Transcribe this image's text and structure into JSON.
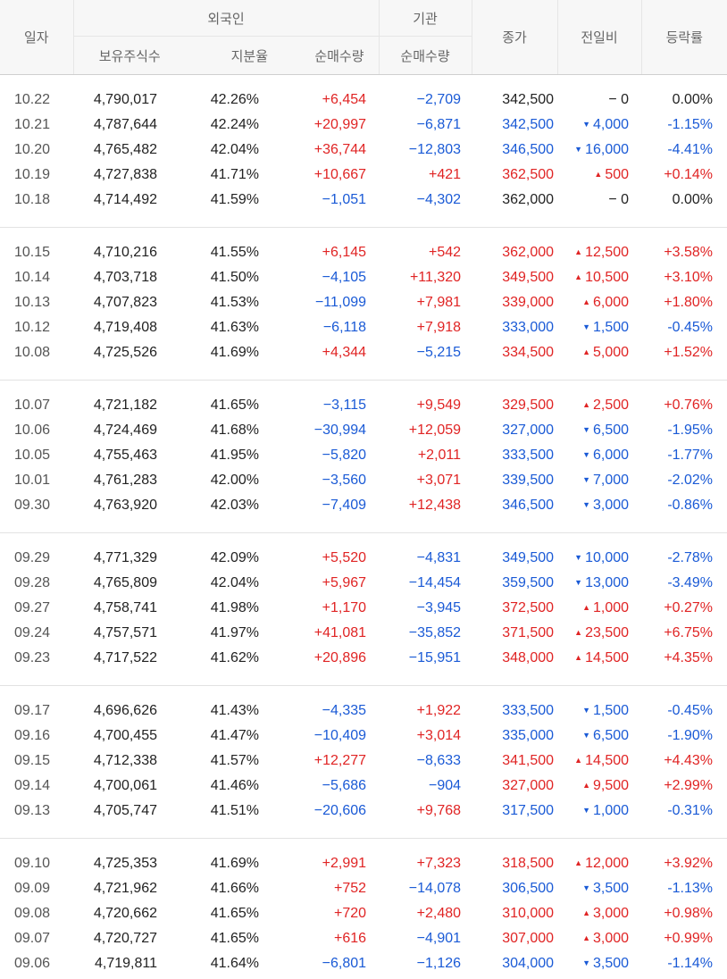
{
  "colors": {
    "up": "#e02424",
    "down": "#1a5ad6",
    "header_bg": "#f7f7f7"
  },
  "header": {
    "date": "일자",
    "foreign": "외국인",
    "institution": "기관",
    "close": "종가",
    "change": "전일비",
    "rate": "등락률",
    "holdings": "보유주식수",
    "ratio": "지분율",
    "foreign_net": "순매수량",
    "inst_net": "순매수량"
  },
  "groups": [
    [
      {
        "date": "10.22",
        "holdings": "4,790,017",
        "ratio": "42.26%",
        "foreign_net": "+6,454",
        "inst_net": "−2,709",
        "close": "342,500",
        "dir": "flat",
        "change": "− 0",
        "rate": "0.00%"
      },
      {
        "date": "10.21",
        "holdings": "4,787,644",
        "ratio": "42.24%",
        "foreign_net": "+20,997",
        "inst_net": "−6,871",
        "close": "342,500",
        "dir": "down",
        "change": "4,000",
        "rate": "-1.15%"
      },
      {
        "date": "10.20",
        "holdings": "4,765,482",
        "ratio": "42.04%",
        "foreign_net": "+36,744",
        "inst_net": "−12,803",
        "close": "346,500",
        "dir": "down",
        "change": "16,000",
        "rate": "-4.41%"
      },
      {
        "date": "10.19",
        "holdings": "4,727,838",
        "ratio": "41.71%",
        "foreign_net": "+10,667",
        "inst_net": "+421",
        "close": "362,500",
        "dir": "up",
        "change": "500",
        "rate": "+0.14%"
      },
      {
        "date": "10.18",
        "holdings": "4,714,492",
        "ratio": "41.59%",
        "foreign_net": "−1,051",
        "inst_net": "−4,302",
        "close": "362,000",
        "dir": "flat",
        "change": "− 0",
        "rate": "0.00%"
      }
    ],
    [
      {
        "date": "10.15",
        "holdings": "4,710,216",
        "ratio": "41.55%",
        "foreign_net": "+6,145",
        "inst_net": "+542",
        "close": "362,000",
        "dir": "up",
        "change": "12,500",
        "rate": "+3.58%"
      },
      {
        "date": "10.14",
        "holdings": "4,703,718",
        "ratio": "41.50%",
        "foreign_net": "−4,105",
        "inst_net": "+11,320",
        "close": "349,500",
        "dir": "up",
        "change": "10,500",
        "rate": "+3.10%"
      },
      {
        "date": "10.13",
        "holdings": "4,707,823",
        "ratio": "41.53%",
        "foreign_net": "−11,099",
        "inst_net": "+7,981",
        "close": "339,000",
        "dir": "up",
        "change": "6,000",
        "rate": "+1.80%"
      },
      {
        "date": "10.12",
        "holdings": "4,719,408",
        "ratio": "41.63%",
        "foreign_net": "−6,118",
        "inst_net": "+7,918",
        "close": "333,000",
        "dir": "down",
        "change": "1,500",
        "rate": "-0.45%"
      },
      {
        "date": "10.08",
        "holdings": "4,725,526",
        "ratio": "41.69%",
        "foreign_net": "+4,344",
        "inst_net": "−5,215",
        "close": "334,500",
        "dir": "up",
        "change": "5,000",
        "rate": "+1.52%"
      }
    ],
    [
      {
        "date": "10.07",
        "holdings": "4,721,182",
        "ratio": "41.65%",
        "foreign_net": "−3,115",
        "inst_net": "+9,549",
        "close": "329,500",
        "dir": "up",
        "change": "2,500",
        "rate": "+0.76%"
      },
      {
        "date": "10.06",
        "holdings": "4,724,469",
        "ratio": "41.68%",
        "foreign_net": "−30,994",
        "inst_net": "+12,059",
        "close": "327,000",
        "dir": "down",
        "change": "6,500",
        "rate": "-1.95%"
      },
      {
        "date": "10.05",
        "holdings": "4,755,463",
        "ratio": "41.95%",
        "foreign_net": "−5,820",
        "inst_net": "+2,011",
        "close": "333,500",
        "dir": "down",
        "change": "6,000",
        "rate": "-1.77%"
      },
      {
        "date": "10.01",
        "holdings": "4,761,283",
        "ratio": "42.00%",
        "foreign_net": "−3,560",
        "inst_net": "+3,071",
        "close": "339,500",
        "dir": "down",
        "change": "7,000",
        "rate": "-2.02%"
      },
      {
        "date": "09.30",
        "holdings": "4,763,920",
        "ratio": "42.03%",
        "foreign_net": "−7,409",
        "inst_net": "+12,438",
        "close": "346,500",
        "dir": "down",
        "change": "3,000",
        "rate": "-0.86%"
      }
    ],
    [
      {
        "date": "09.29",
        "holdings": "4,771,329",
        "ratio": "42.09%",
        "foreign_net": "+5,520",
        "inst_net": "−4,831",
        "close": "349,500",
        "dir": "down",
        "change": "10,000",
        "rate": "-2.78%"
      },
      {
        "date": "09.28",
        "holdings": "4,765,809",
        "ratio": "42.04%",
        "foreign_net": "+5,967",
        "inst_net": "−14,454",
        "close": "359,500",
        "dir": "down",
        "change": "13,000",
        "rate": "-3.49%"
      },
      {
        "date": "09.27",
        "holdings": "4,758,741",
        "ratio": "41.98%",
        "foreign_net": "+1,170",
        "inst_net": "−3,945",
        "close": "372,500",
        "dir": "up",
        "change": "1,000",
        "rate": "+0.27%"
      },
      {
        "date": "09.24",
        "holdings": "4,757,571",
        "ratio": "41.97%",
        "foreign_net": "+41,081",
        "inst_net": "−35,852",
        "close": "371,500",
        "dir": "up",
        "change": "23,500",
        "rate": "+6.75%"
      },
      {
        "date": "09.23",
        "holdings": "4,717,522",
        "ratio": "41.62%",
        "foreign_net": "+20,896",
        "inst_net": "−15,951",
        "close": "348,000",
        "dir": "up",
        "change": "14,500",
        "rate": "+4.35%"
      }
    ],
    [
      {
        "date": "09.17",
        "holdings": "4,696,626",
        "ratio": "41.43%",
        "foreign_net": "−4,335",
        "inst_net": "+1,922",
        "close": "333,500",
        "dir": "down",
        "change": "1,500",
        "rate": "-0.45%"
      },
      {
        "date": "09.16",
        "holdings": "4,700,455",
        "ratio": "41.47%",
        "foreign_net": "−10,409",
        "inst_net": "+3,014",
        "close": "335,000",
        "dir": "down",
        "change": "6,500",
        "rate": "-1.90%"
      },
      {
        "date": "09.15",
        "holdings": "4,712,338",
        "ratio": "41.57%",
        "foreign_net": "+12,277",
        "inst_net": "−8,633",
        "close": "341,500",
        "dir": "up",
        "change": "14,500",
        "rate": "+4.43%"
      },
      {
        "date": "09.14",
        "holdings": "4,700,061",
        "ratio": "41.46%",
        "foreign_net": "−5,686",
        "inst_net": "−904",
        "close": "327,000",
        "dir": "up",
        "change": "9,500",
        "rate": "+2.99%"
      },
      {
        "date": "09.13",
        "holdings": "4,705,747",
        "ratio": "41.51%",
        "foreign_net": "−20,606",
        "inst_net": "+9,768",
        "close": "317,500",
        "dir": "down",
        "change": "1,000",
        "rate": "-0.31%"
      }
    ],
    [
      {
        "date": "09.10",
        "holdings": "4,725,353",
        "ratio": "41.69%",
        "foreign_net": "+2,991",
        "inst_net": "+7,323",
        "close": "318,500",
        "dir": "up",
        "change": "12,000",
        "rate": "+3.92%"
      },
      {
        "date": "09.09",
        "holdings": "4,721,962",
        "ratio": "41.66%",
        "foreign_net": "+752",
        "inst_net": "−14,078",
        "close": "306,500",
        "dir": "down",
        "change": "3,500",
        "rate": "-1.13%"
      },
      {
        "date": "09.08",
        "holdings": "4,720,662",
        "ratio": "41.65%",
        "foreign_net": "+720",
        "inst_net": "+2,480",
        "close": "310,000",
        "dir": "up",
        "change": "3,000",
        "rate": "+0.98%"
      },
      {
        "date": "09.07",
        "holdings": "4,720,727",
        "ratio": "41.65%",
        "foreign_net": "+616",
        "inst_net": "−4,901",
        "close": "307,000",
        "dir": "up",
        "change": "3,000",
        "rate": "+0.99%"
      },
      {
        "date": "09.06",
        "holdings": "4,719,811",
        "ratio": "41.64%",
        "foreign_net": "−6,801",
        "inst_net": "−1,126",
        "close": "304,000",
        "dir": "down",
        "change": "3,500",
        "rate": "-1.14%"
      }
    ]
  ]
}
